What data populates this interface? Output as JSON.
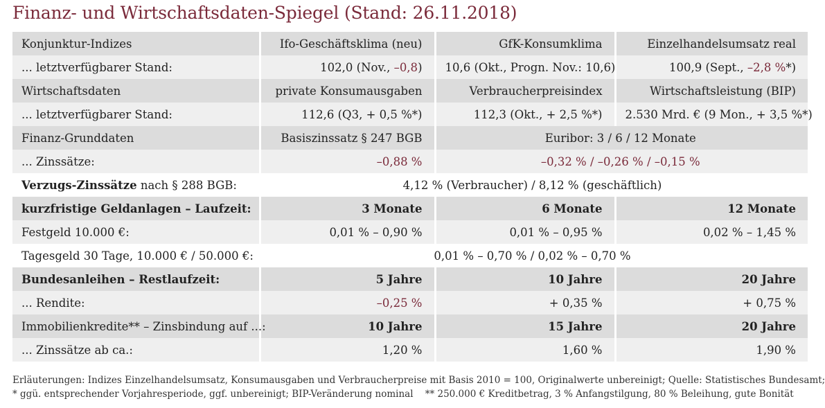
{
  "title": "Finanz- und Wirtschaftsdaten-Spiegel (Stand: 26.11.2018)",
  "rows": [
    {
      "label": "Konjunktur-Indizes",
      "c1": "Ifo-Geschäftsklima (neu)",
      "c2": "GfK-Konsumklima",
      "c3": "Einzelhandelsumsatz real"
    },
    {
      "label": "... letztverfügbarer Stand:",
      "c1a": "102,0 (Nov., ",
      "c1b": "–0,8",
      "c1c": ")",
      "c2": "10,6 (Okt., Progn. Nov.: 10,6)",
      "c3a": "100,9 (Sept., ",
      "c3b": "–2,8 %",
      "c3c": "*)"
    },
    {
      "label": "Wirtschaftsdaten",
      "c1": "private Konsumausgaben",
      "c2": "Verbraucherpreisindex",
      "c3": "Wirtschaftsleistung (BIP)"
    },
    {
      "label": "... letztverfügbarer Stand:",
      "c1": "112,6 (Q3, + 0,5 %*)",
      "c2": "112,3 (Okt., + 2,5 %*)",
      "c3": "2.530 Mrd. € (9 Mon., + 3,5 %*)"
    },
    {
      "label": "Finanz-Grunddaten",
      "c1": "Basiszinssatz § 247 BGB",
      "c23": "Euribor: 3 / 6 / 12 Monate"
    },
    {
      "label": "... Zinssätze:",
      "c1": "–0,88 %",
      "c23": "–0,32 % / –0,26 % / –0,15 %"
    },
    {
      "label_bold": "Verzugs-Zinssätze",
      "label_rest": " nach § 288 BGB:",
      "c123": "4,12 % (Verbraucher) / 8,12 % (geschäftlich)"
    },
    {
      "label": "kurzfristige Geldanlagen – Laufzeit:",
      "c1": "3 Monate",
      "c2": "6 Monate",
      "c3": "12 Monate"
    },
    {
      "label": "Festgeld 10.000 €:",
      "c1": "0,01 % – 0,90 %",
      "c2": "0,01 % – 0,95 %",
      "c3": "0,02 % – 1,45 %"
    },
    {
      "label": "Tagesgeld 30 Tage, 10.000 € / 50.000 €:",
      "c123": "0,01 % – 0,70 % / 0,02 % – 0,70 %"
    },
    {
      "label": "Bundesanleihen – Restlaufzeit:",
      "c1": "5 Jahre",
      "c2": "10 Jahre",
      "c3": "20 Jahre"
    },
    {
      "label": "... Rendite:",
      "c1": "–0,25 %",
      "c2": "+ 0,35 %",
      "c3": "+ 0,75 %"
    },
    {
      "label": "Immobilienkredite** – Zinsbindung auf ...:",
      "c1": "10 Jahre",
      "c2": "15 Jahre",
      "c3": "20 Jahre"
    },
    {
      "label": "... Zinssätze ab ca.:",
      "c1": "1,20 %",
      "c2": "1,60 %",
      "c3": "1,90 %"
    }
  ],
  "footnote_1": "Erläuterungen: Indizes Einzelhandelsumsatz, Konsumausgaben und Verbraucherpreise mit Basis 2010 = 100, Originalwerte unbereinigt; Quelle: Statistisches Bundesamt;",
  "footnote_2": "* ggü. entsprechender Vorjahresperiode, ggf. unbereinigt; BIP-Veränderung nominal    ** 250.000 € Kreditbetrag, 3 % Anfangstilgung, 80 % Beleihung, gute Bonität",
  "colors": {
    "title": "#7a2a3a",
    "negative": "#7a2a3a",
    "row_dark": "#dcdcdc",
    "row_light": "#efefef"
  }
}
